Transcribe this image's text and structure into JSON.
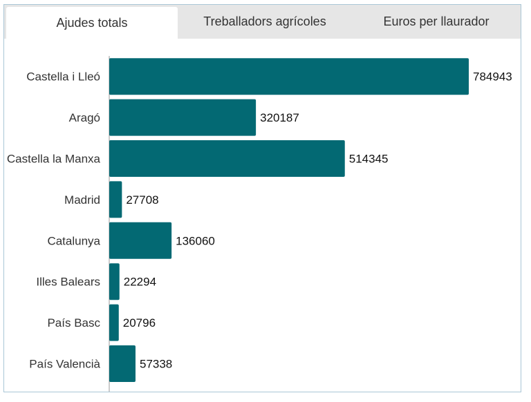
{
  "tabs": [
    {
      "label": "Ajudes totals",
      "active": true
    },
    {
      "label": "Treballadors agrícoles",
      "active": false
    },
    {
      "label": "Euros per llaurador",
      "active": false
    }
  ],
  "colors": {
    "bar": "#036973",
    "axis": "#999999",
    "frame": "#a9c6d6"
  },
  "chart_data": {
    "type": "bar",
    "orientation": "horizontal",
    "categories": [
      "Castella i Lleó",
      "Aragó",
      "Castella la Manxa",
      "Madrid",
      "Catalunya",
      "Illes Balears",
      "País Basc",
      "País Valencià"
    ],
    "values": [
      784943,
      320187,
      514345,
      27708,
      136060,
      22294,
      20796,
      57338
    ],
    "title": "",
    "xlabel": "",
    "ylabel": "",
    "xlim": [
      0,
      784943
    ],
    "grid": false,
    "data_labels": true
  }
}
